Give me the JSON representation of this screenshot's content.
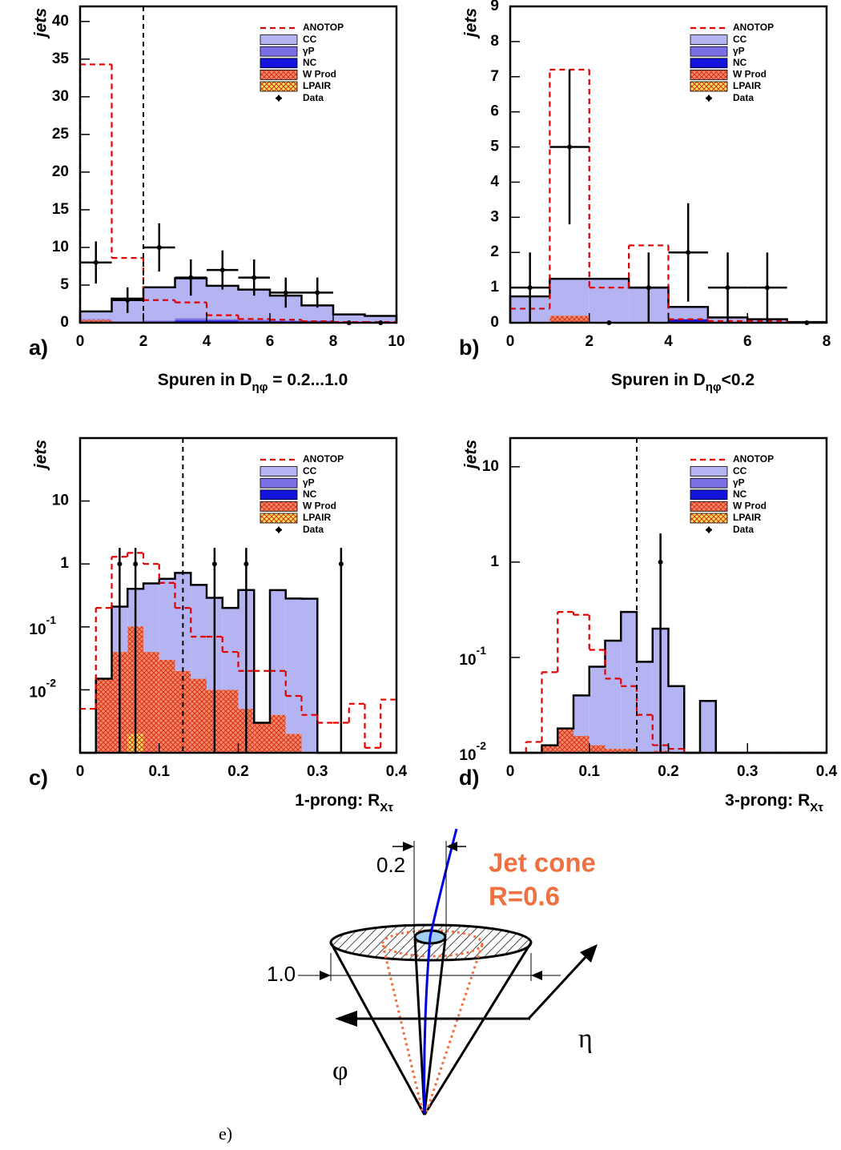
{
  "chart_data": [
    {
      "type": "histogram",
      "panel": "a)",
      "ylabel": "jets",
      "xlabel": [
        "Spuren in D",
        "ηφ",
        " = 0.2...1.0"
      ],
      "bins": [
        0,
        1,
        2,
        3,
        4,
        5,
        6,
        7,
        8,
        9,
        10
      ],
      "xlim": [
        0,
        10
      ],
      "xticks": [
        0,
        2,
        4,
        6,
        8,
        10
      ],
      "ylim": [
        0,
        42
      ],
      "yticks": [
        0,
        5,
        10,
        15,
        20,
        25,
        30,
        35,
        40
      ],
      "log": false,
      "cut": 2,
      "series": [
        {
          "name": "ANOTOP",
          "color": "#e00000",
          "style": "dashed",
          "values": [
            34.3,
            8.6,
            3.0,
            2.7,
            1.0,
            0.5,
            0.4,
            0.2,
            0.1,
            0.1
          ]
        },
        {
          "name": "CC",
          "color": "#b4b4f2",
          "style": "filled",
          "stack": true,
          "values": [
            1.0,
            3.0,
            4.4,
            5.3,
            4.4,
            4.0,
            3.3,
            2.0,
            1.1,
            0.9
          ]
        },
        {
          "name": "γP",
          "color": "#7b6fe6",
          "style": "filled",
          "stack": true,
          "values": [
            0.1,
            0.2,
            0.3,
            0.3,
            0.2,
            0.2,
            0.1,
            0.1,
            0,
            0
          ]
        },
        {
          "name": "NC",
          "color": "#1414dc",
          "style": "filled",
          "stack": true,
          "values": [
            0,
            0,
            0,
            0.3,
            0.3,
            0.2,
            0.2,
            0.2,
            0,
            0
          ]
        },
        {
          "name": "W Prod",
          "color": "#f48a6a",
          "style": "hatched",
          "stack": true,
          "values": [
            0.4,
            0,
            0,
            0,
            0,
            0,
            0,
            0,
            0,
            0
          ]
        },
        {
          "name": "LPAIR",
          "color": "#f2e45a",
          "style": "hatched",
          "stack": true,
          "values": [
            0,
            0,
            0,
            0,
            0,
            0,
            0,
            0,
            0,
            0
          ]
        },
        {
          "name": "Data",
          "color": "#000000",
          "style": "points",
          "xerr": 0.5,
          "x": [
            0.5,
            1.5,
            2.5,
            3.5,
            4.5,
            5.5,
            6.5,
            7.5,
            8.5,
            9.5
          ],
          "values": [
            8,
            3,
            10,
            6,
            7,
            6,
            4,
            4,
            0,
            0
          ],
          "err_low": [
            2.8,
            1.7,
            3.2,
            2.4,
            2.6,
            2.4,
            2,
            2,
            0,
            0
          ],
          "err_high": [
            2.8,
            1.7,
            3.2,
            2.4,
            2.6,
            2.4,
            2,
            2,
            0,
            0
          ]
        }
      ]
    },
    {
      "type": "histogram",
      "panel": "b)",
      "ylabel": "jets",
      "xlabel": [
        "Spuren in D",
        "ηφ",
        "<0.2"
      ],
      "bins": [
        0,
        1,
        2,
        3,
        4,
        5,
        6,
        7,
        8
      ],
      "xlim": [
        0,
        8
      ],
      "xticks": [
        0,
        2,
        4,
        6,
        8
      ],
      "ylim": [
        0,
        9
      ],
      "yticks": [
        0,
        1,
        2,
        3,
        4,
        5,
        6,
        7,
        8,
        9
      ],
      "log": false,
      "series": [
        {
          "name": "ANOTOP",
          "color": "#e00000",
          "style": "dashed",
          "values": [
            0.4,
            7.2,
            1.0,
            2.2,
            0.1,
            0.05,
            0.05,
            0
          ]
        },
        {
          "name": "CC",
          "color": "#b4b4f2",
          "style": "filled",
          "stack": true,
          "values": [
            0.75,
            1.05,
            1.25,
            1.0,
            0.35,
            0.15,
            0.1,
            0.02
          ]
        },
        {
          "name": "γP",
          "color": "#7b6fe6",
          "style": "filled",
          "stack": true,
          "values": [
            0,
            0,
            0,
            0,
            0,
            0,
            0,
            0
          ]
        },
        {
          "name": "NC",
          "color": "#1414dc",
          "style": "filled",
          "stack": true,
          "values": [
            0,
            0,
            0,
            0,
            0.1,
            0,
            0,
            0
          ]
        },
        {
          "name": "W Prod",
          "color": "#f48a6a",
          "style": "hatched",
          "stack": true,
          "values": [
            0,
            0.2,
            0,
            0,
            0,
            0,
            0,
            0
          ]
        },
        {
          "name": "LPAIR",
          "color": "#f2e45a",
          "style": "hatched",
          "stack": true,
          "values": [
            0,
            0,
            0,
            0,
            0,
            0,
            0,
            0
          ]
        },
        {
          "name": "Data",
          "color": "#000000",
          "style": "points",
          "xerr": 0.5,
          "x": [
            0.5,
            1.5,
            2.5,
            3.5,
            4.5,
            5.5,
            6.5,
            7.5
          ],
          "values": [
            1,
            5,
            0,
            1,
            2,
            1,
            1,
            0
          ],
          "err_low": [
            1,
            2.2,
            0,
            1,
            1.4,
            1,
            1,
            0
          ],
          "err_high": [
            1,
            2.2,
            0,
            1,
            1.4,
            1,
            1,
            0
          ]
        }
      ]
    },
    {
      "type": "histogram",
      "panel": "c)",
      "ylabel": "jets",
      "xlabel": [
        "1-prong: R",
        "Xτ"
      ],
      "bins": [
        0,
        0.02,
        0.04,
        0.06,
        0.08,
        0.1,
        0.12,
        0.14,
        0.16,
        0.18,
        0.2,
        0.22,
        0.24,
        0.26,
        0.28,
        0.3,
        0.32,
        0.34,
        0.36,
        0.38,
        0.4
      ],
      "xlim": [
        0,
        0.4
      ],
      "xticks": [
        0,
        0.1,
        0.2,
        0.3,
        0.4
      ],
      "ylim": [
        0.001,
        100
      ],
      "yticks": [
        {
          "value": 0.01,
          "label": "10",
          "sup": "-2"
        },
        {
          "value": 0.1,
          "label": "10",
          "sup": "-1"
        },
        1,
        10
      ],
      "log": true,
      "cut": 0.13,
      "series": [
        {
          "name": "ANOTOP",
          "color": "#e00000",
          "style": "dashed",
          "values": [
            0.005,
            0.2,
            1.3,
            1.5,
            1.0,
            0.5,
            0.2,
            0.07,
            0.07,
            0.04,
            0.02,
            0.02,
            0.02,
            0.008,
            0.004,
            0.003,
            0.003,
            0.006,
            0.0012,
            0.007
          ]
        },
        {
          "name": "CC",
          "color": "#b4b4f2",
          "style": "filled",
          "stack": true,
          "values": [
            0,
            0,
            0.17,
            0.3,
            0.45,
            0.55,
            0.7,
            0.45,
            0.28,
            0.19,
            0.38,
            0,
            0.38,
            0.28,
            0.28,
            0,
            0,
            0,
            0,
            0
          ]
        },
        {
          "name": "γP",
          "color": "#7b6fe6",
          "style": "filled",
          "stack": true,
          "values": [
            0,
            0,
            0,
            0,
            0,
            0,
            0,
            0,
            0,
            0,
            0,
            0,
            0,
            0,
            0,
            0,
            0,
            0,
            0,
            0
          ]
        },
        {
          "name": "NC",
          "color": "#1414dc",
          "style": "filled",
          "stack": true,
          "values": [
            0,
            0,
            0,
            0,
            0,
            0,
            0,
            0,
            0,
            0,
            0,
            0,
            0,
            0,
            0,
            0,
            0,
            0,
            0,
            0
          ]
        },
        {
          "name": "W Prod",
          "color": "#f48a6a",
          "style": "hatched",
          "stack": true,
          "values": [
            0,
            0.015,
            0.04,
            0.1,
            0.04,
            0.03,
            0.02,
            0.015,
            0.01,
            0.01,
            0.005,
            0.003,
            0.004,
            0.002,
            0,
            0,
            0,
            0,
            0,
            0
          ]
        },
        {
          "name": "LPAIR",
          "color": "#f2e45a",
          "style": "hatched",
          "stack": true,
          "values": [
            0,
            0,
            0,
            0.002,
            0,
            0,
            0,
            0,
            0,
            0,
            0,
            0,
            0,
            0,
            0,
            0,
            0,
            0,
            0,
            0
          ]
        },
        {
          "name": "Data",
          "color": "#000000",
          "style": "points",
          "x": [
            0.05,
            0.07,
            0.17,
            0.21,
            0.33
          ],
          "values": [
            1,
            1,
            1,
            1,
            1
          ],
          "err_low": [
            1,
            1,
            1,
            1,
            1
          ],
          "err_high": [
            0.8,
            0.8,
            0.8,
            0.8,
            0.8
          ]
        }
      ]
    },
    {
      "type": "histogram",
      "panel": "d)",
      "ylabel": "jets",
      "xlabel": [
        "3-prong: R",
        "Xτ"
      ],
      "bins": [
        0,
        0.02,
        0.04,
        0.06,
        0.08,
        0.1,
        0.12,
        0.14,
        0.16,
        0.18,
        0.2,
        0.22,
        0.24,
        0.26,
        0.28,
        0.3,
        0.32,
        0.34,
        0.36,
        0.38,
        0.4
      ],
      "xlim": [
        0,
        0.4
      ],
      "xticks": [
        0,
        0.1,
        0.2,
        0.3,
        0.4
      ],
      "ylim": [
        0.01,
        20
      ],
      "yticks": [
        {
          "value": 0.01,
          "label": "10",
          "sup": "-2"
        },
        {
          "value": 0.1,
          "label": "10",
          "sup": "-1"
        },
        1,
        10
      ],
      "log": true,
      "cut": 0.16,
      "series": [
        {
          "name": "ANOTOP",
          "color": "#e00000",
          "style": "dashed",
          "values": [
            0,
            0.013,
            0.07,
            0.3,
            0.28,
            0.12,
            0.06,
            0.05,
            0.025,
            0.012,
            0.011,
            0,
            0,
            0,
            0,
            0,
            0,
            0,
            0,
            0
          ]
        },
        {
          "name": "CC",
          "color": "#b4b4f2",
          "style": "filled",
          "stack": true,
          "values": [
            0,
            0,
            0,
            0,
            0.025,
            0.068,
            0.139,
            0.289,
            0.08,
            0.19,
            0.05,
            0,
            0.035,
            0,
            0,
            0,
            0,
            0,
            0,
            0
          ]
        },
        {
          "name": "γP",
          "color": "#7b6fe6",
          "style": "filled",
          "stack": true,
          "values": [
            0,
            0,
            0,
            0,
            0,
            0,
            0,
            0,
            0,
            0,
            0,
            0,
            0,
            0,
            0,
            0,
            0,
            0,
            0,
            0
          ]
        },
        {
          "name": "NC",
          "color": "#1414dc",
          "style": "filled",
          "stack": true,
          "values": [
            0,
            0,
            0,
            0,
            0,
            0,
            0,
            0,
            0,
            0,
            0,
            0,
            0,
            0,
            0,
            0,
            0,
            0,
            0,
            0
          ]
        },
        {
          "name": "W Prod",
          "color": "#f48a6a",
          "style": "hatched",
          "stack": true,
          "values": [
            0,
            0,
            0.012,
            0.018,
            0.015,
            0.012,
            0.011,
            0.011,
            0.01,
            0.0105,
            0,
            0,
            0,
            0,
            0,
            0,
            0,
            0,
            0,
            0
          ]
        },
        {
          "name": "LPAIR",
          "color": "#f2e45a",
          "style": "hatched",
          "stack": true,
          "values": [
            0,
            0,
            0,
            0,
            0,
            0,
            0,
            0,
            0,
            0,
            0,
            0,
            0,
            0,
            0,
            0,
            0,
            0,
            0,
            0
          ]
        },
        {
          "name": "Data",
          "color": "#000000",
          "style": "points",
          "x": [
            0.19
          ],
          "values": [
            1
          ],
          "err_low": [
            1
          ],
          "err_high": [
            1
          ]
        }
      ]
    }
  ],
  "diagram": {
    "width_label": "0.2",
    "cone_label": "Jet cone",
    "radius_label": "R=0.6",
    "outer_label": "1.0",
    "eta": "η",
    "phi": "φ",
    "panel": "e)"
  }
}
